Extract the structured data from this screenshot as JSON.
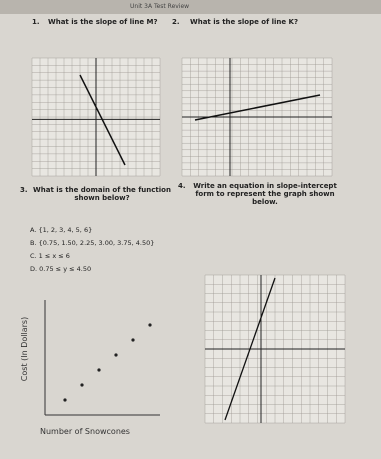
{
  "header": {
    "title": "Unit 3A Test Review"
  },
  "questions": [
    {
      "number": "1.",
      "text": "What is the slope of line M?"
    },
    {
      "number": "2.",
      "text": "What is the slope of line K?"
    },
    {
      "number": "3.",
      "text": "What is the domain of the function shown below?",
      "options": [
        "A. {1, 2, 3, 4, 5, 6}",
        "B. {0.75, 1.50, 2.25, 3.00, 3.75, 4.50}",
        "C. 1 ≤ x ≤ 6",
        "D. 0.75 ≤ y ≤ 4.50"
      ]
    },
    {
      "number": "4.",
      "text": "Write an equation in slope-intercept form to represent the graph shown below."
    }
  ],
  "graph": {
    "y_label": "Cost (In Dollars)",
    "x_label": "Number of Snowcones"
  }
}
